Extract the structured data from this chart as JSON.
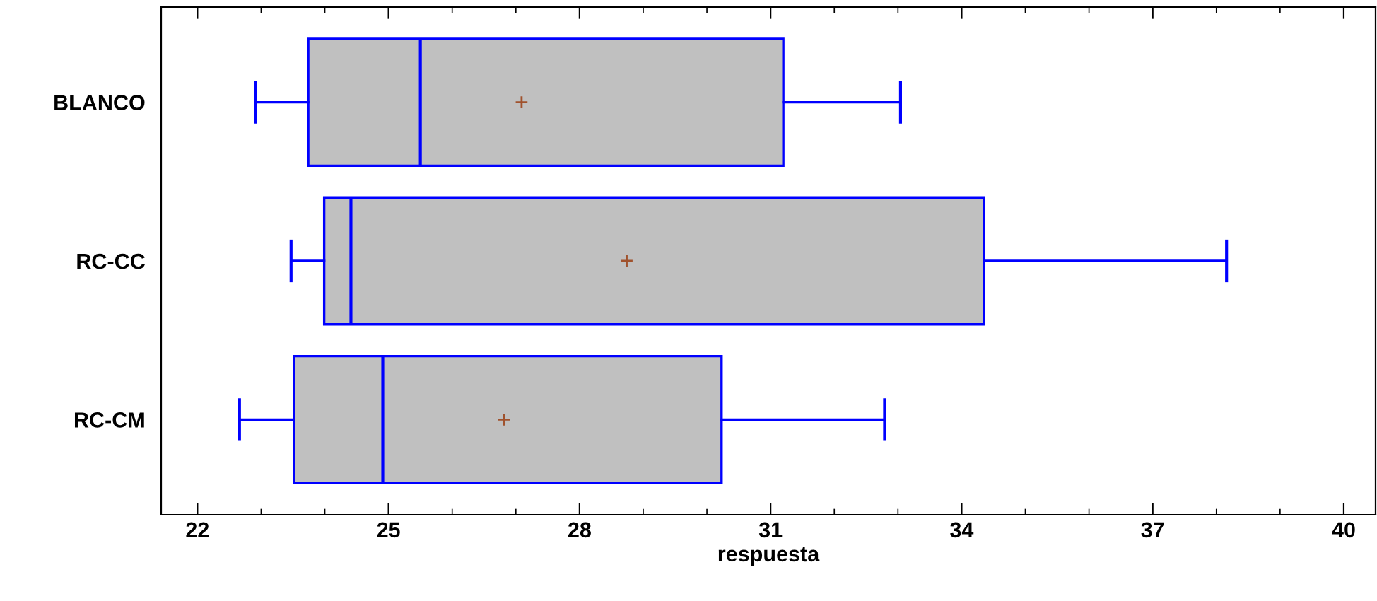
{
  "chart_data": {
    "type": "box",
    "orientation": "horizontal",
    "xlabel": "respuesta",
    "categories": [
      "BLANCO",
      "RC-CC",
      "RC-CM"
    ],
    "boxes": [
      {
        "low": 22.91,
        "q1": 23.74,
        "median": 25.5,
        "q3": 31.2,
        "high": 33.04,
        "mean": 27.09
      },
      {
        "low": 23.47,
        "q1": 23.99,
        "median": 24.41,
        "q3": 34.35,
        "high": 38.16,
        "mean": 28.74
      },
      {
        "low": 22.66,
        "q1": 23.52,
        "median": 24.91,
        "q3": 30.23,
        "high": 32.79,
        "mean": 26.81
      }
    ],
    "color": "#c0c0c0",
    "xlim": [
      21.43,
      40.5
    ],
    "xticks": [
      22,
      25,
      28,
      31,
      34,
      37,
      40
    ],
    "grid": false
  }
}
